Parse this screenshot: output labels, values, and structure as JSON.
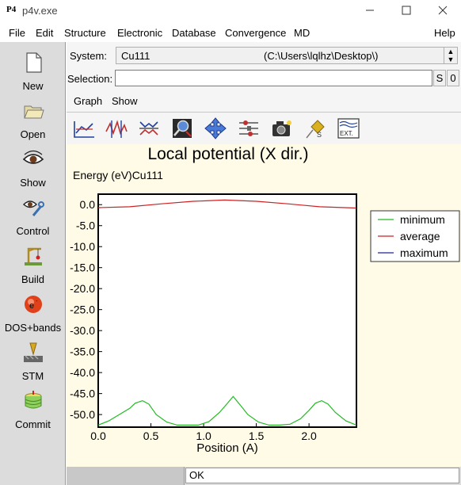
{
  "window": {
    "title": "p4v.exe",
    "app_icon_text": "P4"
  },
  "menu": [
    "File",
    "Edit",
    "Structure",
    "Electronic",
    "Database",
    "Convergence",
    "MD",
    "Help"
  ],
  "sidebar": [
    {
      "label": "New",
      "icon": "new-document-icon"
    },
    {
      "label": "Open",
      "icon": "folder-open-icon"
    },
    {
      "label": "Show",
      "icon": "eye-icon"
    },
    {
      "label": "Control",
      "icon": "wrench-eye-icon"
    },
    {
      "label": "Build",
      "icon": "crane-icon"
    },
    {
      "label": "DOS+bands",
      "icon": "electron-icon"
    },
    {
      "label": "STM",
      "icon": "stm-tip-icon"
    },
    {
      "label": "Commit",
      "icon": "database-icon"
    }
  ],
  "system": {
    "label": "System:",
    "name": "Cu111",
    "path": "(C:\\Users\\lqlhz\\Desktop\\)"
  },
  "selection": {
    "label": "Selection:",
    "value": "",
    "s_button": "S",
    "zero_button": "0"
  },
  "tabs": [
    "Graph",
    "Show"
  ],
  "toolbar": [
    "line-graph-icon",
    "peaks-graph-icon",
    "mirror-graph-icon",
    "magnifier-icon",
    "move-arrows-icon",
    "tune-icon",
    "camera-icon",
    "pin-icon",
    "export-icon"
  ],
  "toolbar_export_text": "EXT.",
  "status": {
    "message": "OK"
  },
  "colors": {
    "minimum": "#22bb22",
    "average": "#cc2222",
    "maximum": "#222299"
  },
  "chart_data": {
    "type": "line",
    "title": "Local potential (X dir.)",
    "ylabel": "Energy (eV)Cu111",
    "xlabel": "Position (A)",
    "xlim": [
      0,
      2.45
    ],
    "ylim": [
      -53,
      2.5
    ],
    "x_ticks": [
      0.0,
      0.5,
      1.0,
      1.5,
      2.0
    ],
    "x_tick_labels": [
      "0.0",
      "0.5",
      "1.0",
      "1.5",
      "2.0"
    ],
    "y_ticks": [
      0,
      -5,
      -10,
      -15,
      -20,
      -25,
      -30,
      -35,
      -40,
      -45,
      -50
    ],
    "y_tick_labels": [
      "0.0",
      "-5.0",
      "-10.0",
      "-15.0",
      "-20.0",
      "-25.0",
      "-30.0",
      "-35.0",
      "-40.0",
      "-45.0",
      "-50.0"
    ],
    "legend_position": "right",
    "series": [
      {
        "name": "minimum",
        "x": [
          0.0,
          0.1,
          0.2,
          0.3,
          0.35,
          0.42,
          0.48,
          0.55,
          0.65,
          0.75,
          0.85,
          0.95,
          1.05,
          1.15,
          1.22,
          1.28,
          1.34,
          1.42,
          1.52,
          1.62,
          1.72,
          1.82,
          1.92,
          2.0,
          2.06,
          2.12,
          2.18,
          2.25,
          2.35,
          2.45
        ],
        "y": [
          -52.5,
          -51.5,
          -50.0,
          -48.5,
          -47.3,
          -46.7,
          -47.5,
          -50.0,
          -51.8,
          -52.5,
          -52.5,
          -52.5,
          -51.7,
          -49.5,
          -47.5,
          -45.7,
          -47.5,
          -50.0,
          -51.8,
          -52.5,
          -52.5,
          -52.3,
          -51.0,
          -49.0,
          -47.3,
          -46.7,
          -47.5,
          -49.5,
          -51.5,
          -52.5
        ]
      },
      {
        "name": "average",
        "x": [
          0.0,
          0.3,
          0.6,
          0.9,
          1.2,
          1.5,
          1.8,
          2.1,
          2.45
        ],
        "y": [
          -0.7,
          -0.5,
          0.2,
          0.8,
          1.1,
          0.8,
          0.2,
          -0.5,
          -0.8
        ]
      },
      {
        "name": "maximum",
        "x": [],
        "y": []
      }
    ]
  }
}
